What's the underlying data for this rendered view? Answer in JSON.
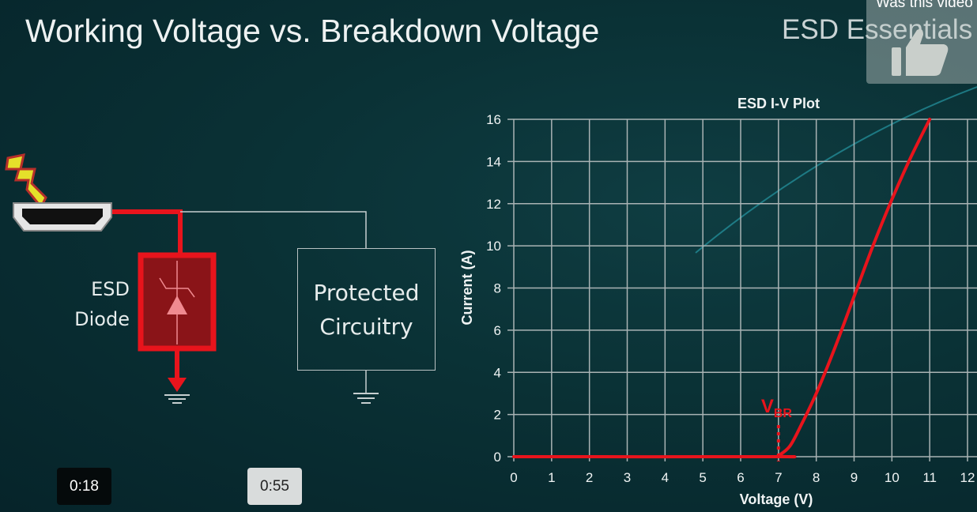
{
  "slide": {
    "title": "Working Voltage vs. Breakdown Voltage",
    "brand": "ESD Essentials"
  },
  "feedback_overlay": {
    "text": "Was this video helpful?",
    "icon": "thumbs-up-icon"
  },
  "circuit": {
    "connector_icon": "hdmi-connector-icon",
    "strike_icon": "lightning-bolt-icon",
    "diode_label_line1": "ESD",
    "diode_label_line2": "Diode",
    "protected_line1": "Protected",
    "protected_line2": "Circuitry",
    "current_path_color": "#e8141c"
  },
  "player": {
    "current_time": "0:18",
    "hover_time": "0:55"
  },
  "chart_data": {
    "type": "line",
    "title": "ESD I-V Plot",
    "xlabel": "Voltage (V)",
    "ylabel": "Current (A)",
    "xlim": [
      0,
      12
    ],
    "ylim": [
      0,
      16
    ],
    "xticks": [
      "0",
      "1",
      "2",
      "3",
      "4",
      "5",
      "6",
      "7",
      "8",
      "9",
      "10",
      "11",
      "12"
    ],
    "yticks": [
      "0",
      "2",
      "4",
      "6",
      "8",
      "10",
      "12",
      "14",
      "16"
    ],
    "grid": true,
    "series": [
      {
        "color": "#e8141c",
        "x": [
          0,
          6.9,
          7.0,
          7.3,
          7.6,
          8.0,
          8.5,
          9.0,
          9.5,
          10.0,
          10.5,
          11.0
        ],
        "y": [
          0,
          0,
          0.05,
          0.5,
          1.5,
          3.0,
          5.2,
          7.6,
          10.0,
          12.2,
          14.2,
          16.0
        ]
      }
    ],
    "annotation": {
      "text_main": "V",
      "text_sub": "BR",
      "x": 7,
      "color": "#e8141c"
    }
  }
}
